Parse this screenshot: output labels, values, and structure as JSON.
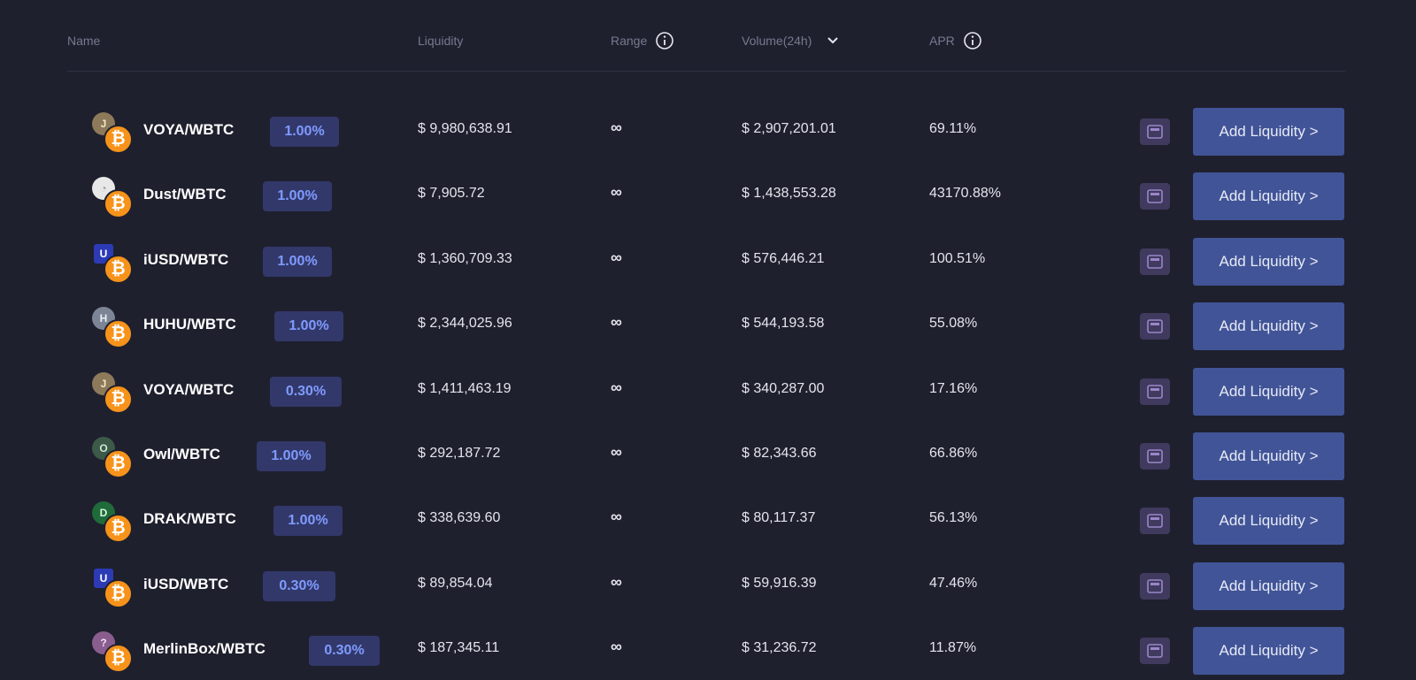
{
  "header": {
    "name": "Name",
    "liquidity": "Liquidity",
    "range": "Range",
    "volume": "Volume(24h)",
    "apr": "APR"
  },
  "colors": {
    "background": "#1f202e",
    "badge_bg": "#32386a",
    "badge_text": "#7f9bff",
    "button_bg": "#415497",
    "btc_orange": "#f7931a",
    "stake_icon_bg": "#403a5e"
  },
  "rows": [
    {
      "pair": "VOYA/WBTC",
      "fee": "1.00%",
      "liquidity": "$ 9,980,638.91",
      "range": "∞",
      "volume": "$ 2,907,201.01",
      "apr": "69.11%",
      "action": "Add Liquidity >",
      "token_icon": "voya-token-icon"
    },
    {
      "pair": "Dust/WBTC",
      "fee": "1.00%",
      "liquidity": "$ 7,905.72",
      "range": "∞",
      "volume": "$ 1,438,553.28",
      "apr": "43170.88%",
      "action": "Add Liquidity >",
      "token_icon": "dust-token-icon"
    },
    {
      "pair": "iUSD/WBTC",
      "fee": "1.00%",
      "liquidity": "$ 1,360,709.33",
      "range": "∞",
      "volume": "$ 576,446.21",
      "apr": "100.51%",
      "action": "Add Liquidity >",
      "token_icon": "iusd-token-icon"
    },
    {
      "pair": "HUHU/WBTC",
      "fee": "1.00%",
      "liquidity": "$ 2,344,025.96",
      "range": "∞",
      "volume": "$ 544,193.58",
      "apr": "55.08%",
      "action": "Add Liquidity >",
      "token_icon": "huhu-token-icon"
    },
    {
      "pair": "VOYA/WBTC",
      "fee": "0.30%",
      "liquidity": "$ 1,411,463.19",
      "range": "∞",
      "volume": "$ 340,287.00",
      "apr": "17.16%",
      "action": "Add Liquidity >",
      "token_icon": "voya-token-icon"
    },
    {
      "pair": "Owl/WBTC",
      "fee": "1.00%",
      "liquidity": "$ 292,187.72",
      "range": "∞",
      "volume": "$ 82,343.66",
      "apr": "66.86%",
      "action": "Add Liquidity >",
      "token_icon": "owl-token-icon"
    },
    {
      "pair": "DRAK/WBTC",
      "fee": "1.00%",
      "liquidity": "$ 338,639.60",
      "range": "∞",
      "volume": "$ 80,117.37",
      "apr": "56.13%",
      "action": "Add Liquidity >",
      "token_icon": "drak-token-icon"
    },
    {
      "pair": "iUSD/WBTC",
      "fee": "0.30%",
      "liquidity": "$ 89,854.04",
      "range": "∞",
      "volume": "$ 59,916.39",
      "apr": "47.46%",
      "action": "Add Liquidity >",
      "token_icon": "iusd-token-icon"
    },
    {
      "pair": "MerlinBox/WBTC",
      "fee": "0.30%",
      "liquidity": "$ 187,345.11",
      "range": "∞",
      "volume": "$ 31,236.72",
      "apr": "11.87%",
      "action": "Add Liquidity >",
      "token_icon": "merlinbox-token-icon"
    }
  ]
}
